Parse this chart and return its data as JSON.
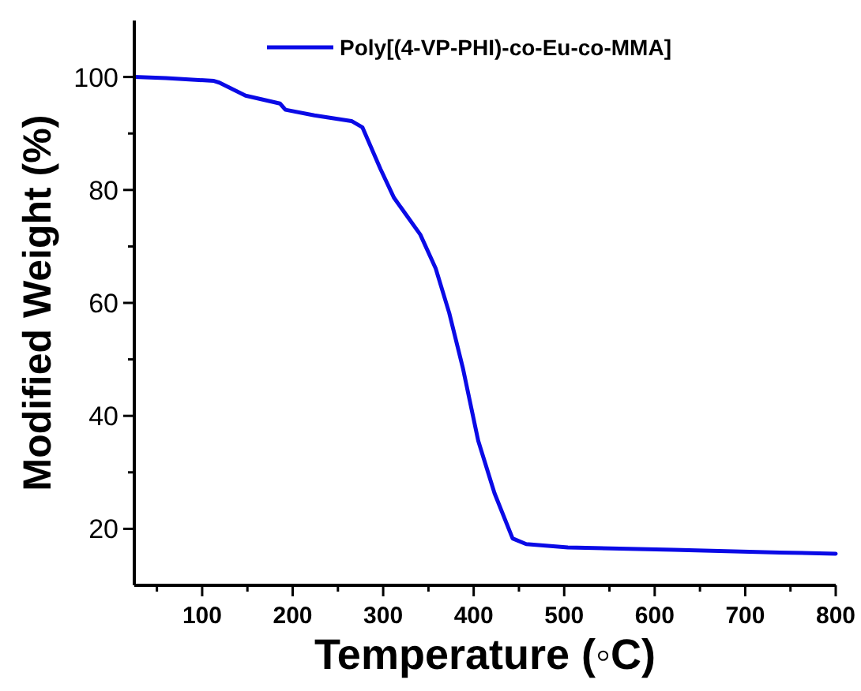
{
  "chart_data": {
    "type": "line",
    "xlabel": "Temperature (◦C)",
    "ylabel": "Modified Weight (%)",
    "x": [
      25,
      60,
      113,
      119,
      148,
      186,
      192,
      224,
      265,
      277,
      297,
      312,
      341,
      358,
      373,
      388,
      405,
      423,
      443,
      458,
      504,
      621,
      738,
      800
    ],
    "series": [
      {
        "name": "Poly[(4-VP-PHI)-co-Eu-co-MMA]",
        "color": "#0a0ae6",
        "values": [
          100,
          99.8,
          99.3,
          99.0,
          96.7,
          95.3,
          94.2,
          93.2,
          92.2,
          91.1,
          83.7,
          78.6,
          72.1,
          66.1,
          58.2,
          48.5,
          35.6,
          26.3,
          18.3,
          17.3,
          16.7,
          16.3,
          15.8,
          15.6
        ]
      }
    ],
    "xlim": [
      25,
      800
    ],
    "ylim": [
      10,
      110
    ],
    "xticks": [
      {
        "value": 50,
        "label": null
      },
      100,
      {
        "value": 150,
        "label": null
      },
      200,
      {
        "value": 250,
        "label": null
      },
      300,
      {
        "value": 350,
        "label": null
      },
      400,
      {
        "value": 450,
        "label": null
      },
      500,
      {
        "value": 550,
        "label": null
      },
      600,
      {
        "value": 650,
        "label": null
      },
      700,
      {
        "value": 750,
        "label": null
      },
      800
    ],
    "yticks": [
      20,
      {
        "value": 30,
        "label": null
      },
      40,
      {
        "value": 50,
        "label": null
      },
      60,
      {
        "value": 70,
        "label": null
      },
      80,
      {
        "value": 90,
        "label": null
      },
      100
    ],
    "legend": "top right",
    "grid": false,
    "marker": "none",
    "line_style": "solid"
  }
}
